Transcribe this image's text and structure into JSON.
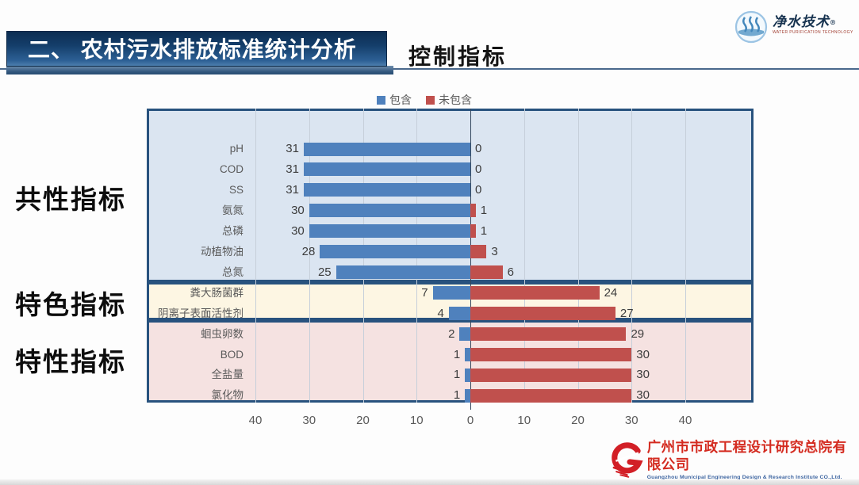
{
  "header": {
    "banner_title": "二、 农村污水排放标准统计分析",
    "section_title": "控制指标",
    "brand": {
      "name": "净水技术",
      "reg": "®",
      "tagline": "WATER PURIFICATION TECHNOLOGY"
    }
  },
  "chart_data": {
    "type": "bar",
    "variant": "horizontal-diverging",
    "legend": [
      {
        "name": "included",
        "label": "包含",
        "color": "#4f81bd"
      },
      {
        "name": "excluded",
        "label": "未包含",
        "color": "#c0504d"
      }
    ],
    "groups": [
      {
        "label": "共性指标",
        "band_color": "#dbe5f1",
        "rows": [
          {
            "category": "pH",
            "included": 31,
            "excluded": 0
          },
          {
            "category": "COD",
            "included": 31,
            "excluded": 0
          },
          {
            "category": "SS",
            "included": 31,
            "excluded": 0
          },
          {
            "category": "氨氮",
            "included": 30,
            "excluded": 1
          },
          {
            "category": "总磷",
            "included": 30,
            "excluded": 1
          },
          {
            "category": "动植物油",
            "included": 28,
            "excluded": 3
          },
          {
            "category": "总氮",
            "included": 25,
            "excluded": 6
          }
        ]
      },
      {
        "label": "特色指标",
        "band_color": "#fdf6e3",
        "rows": [
          {
            "category": "粪大肠菌群",
            "included": 7,
            "excluded": 24
          },
          {
            "category": "阴离子表面活性剂",
            "included": 4,
            "excluded": 27
          }
        ]
      },
      {
        "label": "特性指标",
        "band_color": "#f5e2e1",
        "rows": [
          {
            "category": "蛔虫卵数",
            "included": 2,
            "excluded": 29
          },
          {
            "category": "BOD",
            "included": 1,
            "excluded": 30
          },
          {
            "category": "全盐量",
            "included": 1,
            "excluded": 30
          },
          {
            "category": "氯化物",
            "included": 1,
            "excluded": 30
          }
        ]
      }
    ],
    "x_axis": {
      "tick_values": [
        -40,
        -30,
        -20,
        -10,
        0,
        10,
        20,
        30,
        40
      ],
      "tick_labels": [
        "40",
        "30",
        "20",
        "10",
        "0",
        "10",
        "20",
        "30",
        "40"
      ]
    },
    "colors": {
      "included": "#4f81bd",
      "excluded": "#c0504d",
      "band_border": "#28527e"
    },
    "grid": true,
    "legend_position": "top"
  },
  "footer": {
    "company_zh": "广州市市政工程设计研究总院有限公司",
    "company_en": "Guangzhou Municipal Engineering Design & Research Institute CO.,Ltd."
  }
}
